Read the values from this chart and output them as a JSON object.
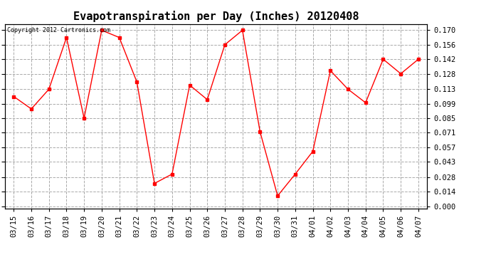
{
  "title": "Evapotranspiration per Day (Inches) 20120408",
  "copyright_text": "Copyright 2012 Cartronics.com",
  "x_labels": [
    "03/15",
    "03/16",
    "03/17",
    "03/18",
    "03/19",
    "03/20",
    "03/21",
    "03/22",
    "03/23",
    "03/24",
    "03/25",
    "03/26",
    "03/27",
    "03/28",
    "03/29",
    "03/30",
    "03/31",
    "04/01",
    "04/02",
    "04/03",
    "04/04",
    "04/05",
    "04/06",
    "04/07"
  ],
  "y_values": [
    0.106,
    0.094,
    0.113,
    0.163,
    0.085,
    0.17,
    0.163,
    0.12,
    0.022,
    0.031,
    0.117,
    0.103,
    0.156,
    0.17,
    0.072,
    0.01,
    0.031,
    0.053,
    0.131,
    0.113,
    0.1,
    0.142,
    0.128,
    0.142
  ],
  "y_ticks": [
    0.0,
    0.014,
    0.028,
    0.043,
    0.057,
    0.071,
    0.085,
    0.099,
    0.113,
    0.128,
    0.142,
    0.156,
    0.17
  ],
  "line_color": "red",
  "marker": "s",
  "marker_size": 2.5,
  "background_color": "#ffffff",
  "grid_color": "#aaaaaa",
  "ylim_min": -0.002,
  "ylim_max": 0.176,
  "title_fontsize": 11,
  "copyright_fontsize": 6,
  "tick_fontsize": 7.5
}
